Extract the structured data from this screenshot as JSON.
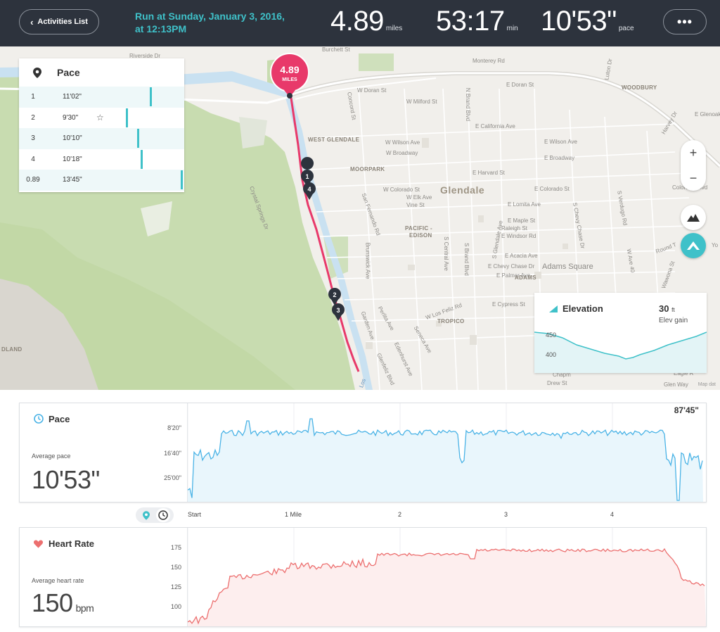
{
  "header": {
    "back_label": "Activities List",
    "title_line1": "Run at Sunday, January 3, 2016,",
    "title_line2": "at 12:13PM",
    "distance_value": "4.89",
    "distance_unit": "miles",
    "duration_value": "53:17",
    "duration_unit": "min",
    "pace_value": "10'53\"",
    "pace_unit": "pace",
    "more_label": "•••"
  },
  "map": {
    "labels": {
      "glendale": "Glendale",
      "adams_square": "Adams Square",
      "woodbury": "WOODBURY",
      "west_glendale": "WEST GLENDALE",
      "moorpark": "MOORPARK",
      "pacific_edison_1": "PACIFIC -",
      "pacific_edison_2": "EDISON",
      "adams": "ADAMS",
      "tropico": "TROPICO",
      "dland": "DLAND",
      "riverside_dr": "Riverside Dr",
      "burchett_st": "Burchett St",
      "monterey_rd": "Monterey Rd",
      "e_glenoaks": "E Glenoaks",
      "w_doran_st": "W Doran St",
      "e_doran_st": "E Doran St",
      "w_milford_st": "W Milford St",
      "e_california_ave": "E California Ave",
      "w_wilson_ave": "W Wilson Ave",
      "e_wilson_ave": "E Wilson Ave",
      "w_broadway": "W Broadway",
      "e_broadway": "E Broadway",
      "e_harvard_st": "E Harvard St",
      "w_colorado_st": "W Colorado St",
      "e_colorado_st": "E Colorado St",
      "w_elk_ave": "W Elk Ave",
      "vine_st": "Vine St",
      "e_lomita_ave": "E Lomita Ave",
      "e_maple_st": "E Maple St",
      "raleigh_st": "Raleigh St",
      "e_windsor_rd": "E Windsor Rd",
      "e_acacia_ave": "E Acacia Ave",
      "e_chevy_chase_dr": "E Chevy Chase Dr",
      "e_palmer_ave": "E Palmer Ave",
      "e_cypress_st": "E Cypress St",
      "w_los_feliz_rd": "W Los Feliz Rd",
      "crystal_springs_dr": "Crystal Springs Dr",
      "san_fernando_rd": "San Fernando Rd",
      "brunswick_ave": "Brunswick Ave",
      "s_central_ave": "S Central Ave",
      "s_brand_blvd": "S Brand Blvd",
      "n_brand_blvd": "N Brand Blvd",
      "concord_st": "Concord St",
      "glendale_ave": "S Glendale Ave",
      "s_chevy_chase_dr": "S Chevy Chase Dr",
      "s_verdugo_rd": "S Verdugo Rd",
      "perlita_ave": "Perlita Ave",
      "garden_ave": "Garden Ave",
      "seneca_ave": "Seneca Ave",
      "edenhurst_ave": "Edenhurst Ave",
      "glenfeliz_blvd": "Glenfeliz Blvd",
      "colorado_blvd": "Colorado Blvd",
      "round_t": "Round T",
      "eagle_r": "Eagle R",
      "glen_way": "Glen Way",
      "chapman": "Chapm",
      "drew_st": "Drew St",
      "luton_dr": "Luton Dr",
      "harvey_dr": "Harvey Dr",
      "los": "Los",
      "yo": "Yo",
      "w_ave_40": "W Ave 40",
      "wawona": "Wawona St"
    },
    "total_marker_value": "4.89",
    "total_marker_unit": "MILES",
    "mile_markers": [
      "1",
      "4",
      "2",
      "3"
    ],
    "credit": "Map dat"
  },
  "pace_panel": {
    "title": "Pace",
    "splits": [
      {
        "mile": "1",
        "pace": "11'02\"",
        "bar": 0.61,
        "fastest": false
      },
      {
        "mile": "2",
        "pace": "9'30\"",
        "bar": 0.3,
        "fastest": true
      },
      {
        "mile": "3",
        "pace": "10'10\"",
        "bar": 0.45,
        "fastest": false
      },
      {
        "mile": "4",
        "pace": "10'18\"",
        "bar": 0.49,
        "fastest": false
      },
      {
        "mile": "0.89",
        "pace": "13'45\"",
        "bar": 1.0,
        "fastest": false
      }
    ],
    "star_glyph": "☆"
  },
  "map_controls": {
    "zoom_in": "+",
    "zoom_out": "−"
  },
  "elevation_panel": {
    "title": "Elevation",
    "gain_value": "30",
    "gain_unit": "ft",
    "gain_label": "Elev gain",
    "ticks": [
      "450",
      "400"
    ]
  },
  "pace_chart": {
    "title": "Pace",
    "avg_label": "Average pace",
    "avg_value": "10'53\"",
    "max_label": "87'45\"",
    "y_ticks": [
      "8'20\"",
      "16'40\"",
      "25'00\""
    ]
  },
  "heart_chart": {
    "title": "Heart Rate",
    "avg_label": "Average heart rate",
    "avg_value": "150",
    "avg_unit": "bpm",
    "y_ticks": [
      "175",
      "150",
      "125",
      "100"
    ]
  },
  "x_axis": {
    "ticks": [
      "Start",
      "1 Mile",
      "2",
      "3",
      "4"
    ]
  },
  "colors": {
    "header_bg": "#2d333d",
    "accent": "#3fc1c9",
    "route": "#e8396a",
    "pace_line": "#4ab3e6",
    "heart_line": "#ec6f6f"
  }
}
